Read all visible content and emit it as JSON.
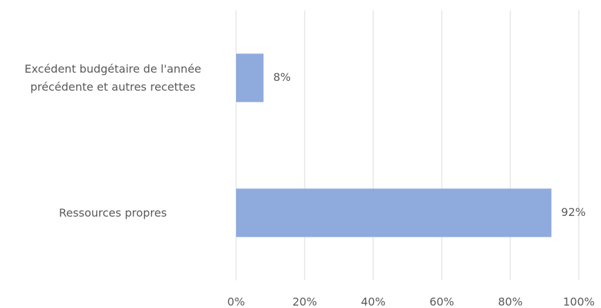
{
  "chart_data": {
    "type": "bar",
    "orientation": "horizontal",
    "categories": [
      "Excédent budgétaire de l'année précédente et autres recettes",
      "Ressources propres"
    ],
    "values": [
      8,
      92
    ],
    "value_labels": [
      "8%",
      "92%"
    ],
    "color": "#8faadc",
    "xlim": [
      0,
      100
    ],
    "xticks": [
      {
        "value": 0,
        "label": "0%"
      },
      {
        "value": 20,
        "label": "20%"
      },
      {
        "value": 40,
        "label": "40%"
      },
      {
        "value": 60,
        "label": "60%"
      },
      {
        "value": 80,
        "label": "80%"
      },
      {
        "value": 100,
        "label": "100%"
      }
    ],
    "grid": true
  }
}
